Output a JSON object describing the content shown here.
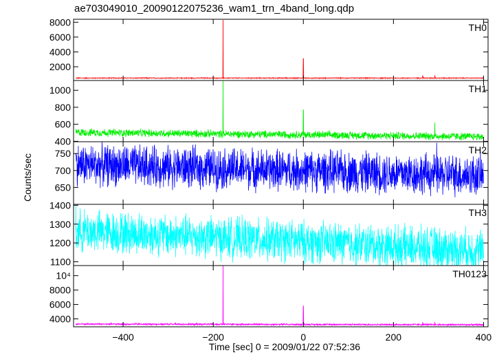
{
  "window": {
    "title": "ae703049010_20090122075236_wam1_trn_4band_long.qdp"
  },
  "chart_data": {
    "type": "line",
    "title": "ae703049010_20090122075236_wam1_trn_4band_long.qdp",
    "xlabel": "Time [sec] 0 = 2009/01/22 07:52:36",
    "ylabel": "Counts/sec",
    "xlim": [
      -510,
      410
    ],
    "x_ticks": [
      -400,
      -200,
      0,
      200,
      400
    ],
    "grid": false,
    "panels": [
      {
        "name": "TH0",
        "color": "#ff0000",
        "ylim": [
          150,
          8400
        ],
        "y_ticks": [
          2000,
          4000,
          6000,
          8000
        ],
        "y_tick_labels": [
          "2000",
          "4000",
          "6000",
          "8000"
        ],
        "baseline": 480,
        "noise": 60,
        "trend_end": 480,
        "spikes": [
          {
            "x": -178,
            "y": 8300
          },
          {
            "x": 0,
            "y": 3100
          },
          {
            "x": 265,
            "y": 780
          },
          {
            "x": 292,
            "y": 850
          }
        ]
      },
      {
        "name": "TH1",
        "color": "#00ee00",
        "ylim": [
          395,
          1115
        ],
        "y_ticks": [
          400,
          600,
          800,
          1000
        ],
        "y_tick_labels": [
          "400",
          "600",
          "800",
          "1000"
        ],
        "baseline": 505,
        "noise": 45,
        "trend_end": 455,
        "spikes": [
          {
            "x": -178,
            "y": 1110
          },
          {
            "x": 0,
            "y": 770
          },
          {
            "x": 292,
            "y": 620
          }
        ]
      },
      {
        "name": "TH2",
        "color": "#0000ff",
        "ylim": [
          600,
          785
        ],
        "y_ticks": [
          650,
          700,
          750
        ],
        "y_tick_labels": [
          "650",
          "700",
          "750"
        ],
        "baseline": 718,
        "noise": 60,
        "trend_end": 685,
        "spikes": [
          {
            "x": 296,
            "y": 782
          }
        ]
      },
      {
        "name": "TH3",
        "color": "#00ffff",
        "ylim": [
          1080,
          1405
        ],
        "y_ticks": [
          1100,
          1200,
          1300,
          1400
        ],
        "y_tick_labels": [
          "1100",
          "1200",
          "1300",
          "1400"
        ],
        "baseline": 1265,
        "noise": 110,
        "trend_end": 1160,
        "spikes": [
          {
            "x": -505,
            "y": 1400
          }
        ]
      },
      {
        "name": "TH0123",
        "color": "#ff00ff",
        "ylim": [
          2900,
          11400
        ],
        "y_ticks": [
          4000,
          6000,
          8000,
          10000
        ],
        "y_tick_labels": [
          "4000",
          "6000",
          "8000",
          "10⁴"
        ],
        "baseline": 3280,
        "noise": 120,
        "trend_end": 3180,
        "spikes": [
          {
            "x": -178,
            "y": 11400
          },
          {
            "x": 0,
            "y": 5800
          },
          {
            "x": 265,
            "y": 3500
          },
          {
            "x": 292,
            "y": 3550
          }
        ]
      }
    ]
  }
}
